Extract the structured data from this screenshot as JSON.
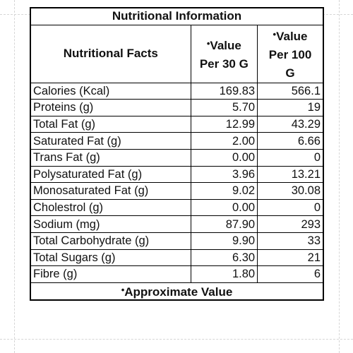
{
  "title": "Nutritional Information",
  "header": {
    "facts_label": "Nutritional Facts",
    "col_30g_star": "•",
    "col_30g_line1": "Value",
    "col_30g_line2": "Per 30 G",
    "col_100g_star": "•",
    "col_100g_line1": "Value",
    "col_100g_line2": "Per 100",
    "col_100g_line3": "G"
  },
  "rows": [
    {
      "label": "Calories (Kcal)",
      "per_30g": "169.83",
      "per_100g": "566.1"
    },
    {
      "label": "Proteins (g)",
      "per_30g": "5.70",
      "per_100g": "19"
    },
    {
      "label": "Total Fat (g)",
      "per_30g": "12.99",
      "per_100g": "43.29"
    },
    {
      "label": "Saturated Fat (g)",
      "per_30g": "2.00",
      "per_100g": "6.66"
    },
    {
      "label": "Trans Fat (g)",
      "per_30g": "0.00",
      "per_100g": "0"
    },
    {
      "label": "Polysaturated Fat (g)",
      "per_30g": "3.96",
      "per_100g": "13.21"
    },
    {
      "label": "Monosaturated Fat (g)",
      "per_30g": "9.02",
      "per_100g": "30.08"
    },
    {
      "label": "Cholestrol (g)",
      "per_30g": "0.00",
      "per_100g": "0"
    },
    {
      "label": "Sodium  (mg)",
      "per_30g": "87.90",
      "per_100g": "293"
    },
    {
      "label": "Total Carbohydrate (g)",
      "per_30g": "9.90",
      "per_100g": "33"
    },
    {
      "label": "Total Sugars (g)",
      "per_30g": "6.30",
      "per_100g": "21"
    },
    {
      "label": "Fibre (g)",
      "per_30g": "1.80",
      "per_100g": "6"
    }
  ],
  "footer": {
    "star": "•",
    "text": "Approximate Value"
  }
}
